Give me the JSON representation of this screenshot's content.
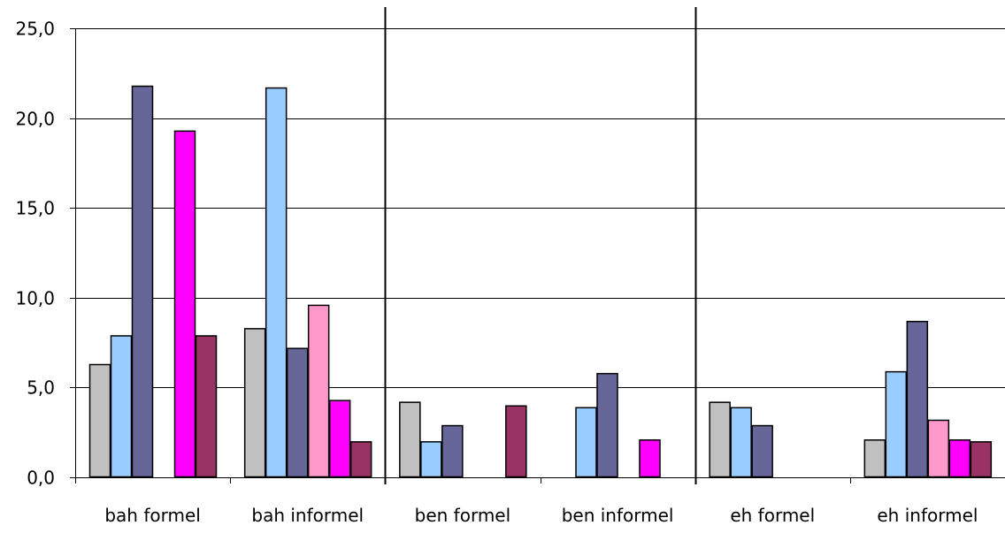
{
  "chart_data": {
    "type": "bar",
    "title": "",
    "xlabel": "",
    "ylabel": "",
    "ylim": [
      0,
      25
    ],
    "yticks": [
      "0,0",
      "5,0",
      "10,0",
      "15,0",
      "20,0",
      "25,0"
    ],
    "ytick_values": [
      0,
      5,
      10,
      15,
      20,
      25
    ],
    "grid": true,
    "legend": "none",
    "categories": [
      "bah formel",
      "bah informel",
      "ben formel",
      "ben informel",
      "eh formel",
      "eh informel"
    ],
    "group_separators_after": [
      2,
      4
    ],
    "series": [
      {
        "color": "#c0c0c0",
        "values": [
          6.3,
          8.3,
          4.2,
          0,
          4.2,
          2.1
        ]
      },
      {
        "color": "#99ccff",
        "values": [
          7.9,
          21.7,
          2.0,
          3.9,
          3.9,
          5.9
        ]
      },
      {
        "color": "#666699",
        "values": [
          21.8,
          7.2,
          2.9,
          5.8,
          2.9,
          8.7
        ]
      },
      {
        "color": "#ff99cc",
        "values": [
          0,
          9.6,
          0,
          0,
          0,
          3.2
        ]
      },
      {
        "color": "#ff00ff",
        "values": [
          19.3,
          4.3,
          0,
          2.1,
          0,
          2.1
        ]
      },
      {
        "color": "#993366",
        "values": [
          7.9,
          2.0,
          4.0,
          0,
          0,
          2.0
        ]
      }
    ]
  }
}
